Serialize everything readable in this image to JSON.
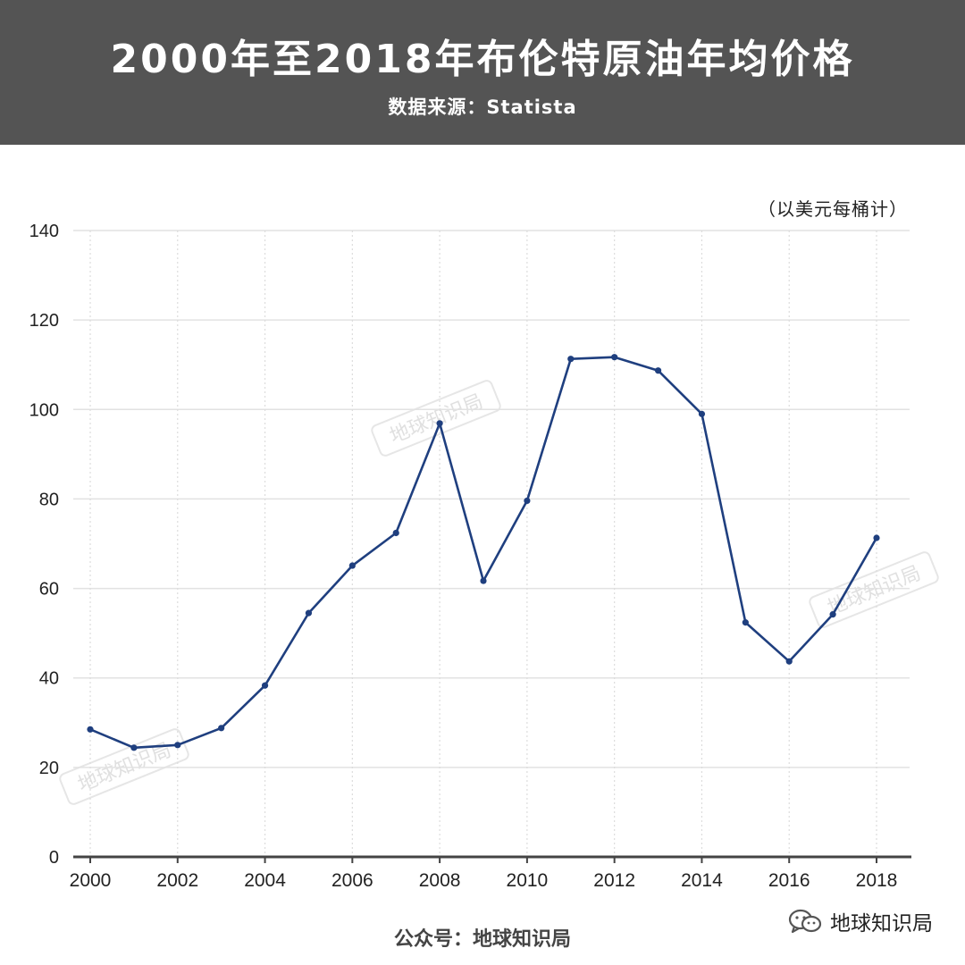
{
  "header": {
    "title": "2000年至2018年布伦特原油年均价格",
    "source": "数据来源：Statista"
  },
  "unit_label": "（以美元每桶计）",
  "footer": {
    "account": "公众号：地球知识局",
    "wechat_name": "地球知识局",
    "wechat_icon": "wechat-icon"
  },
  "watermark_text": "地球知识局",
  "colors": {
    "header_bg": "#545454",
    "line": "#1f3f7f",
    "grid": "#e2e2e2",
    "axis": "#444444"
  },
  "chart_data": {
    "type": "line",
    "title": "2000年至2018年布伦特原油年均价格",
    "subtitle": "数据来源：Statista",
    "ylabel": "（以美元每桶计）",
    "x": [
      2000,
      2001,
      2002,
      2003,
      2004,
      2005,
      2006,
      2007,
      2008,
      2009,
      2010,
      2011,
      2012,
      2013,
      2014,
      2015,
      2016,
      2017,
      2018
    ],
    "x_tick_labels": [
      "2000",
      "2002",
      "2004",
      "2006",
      "2008",
      "2010",
      "2012",
      "2014",
      "2016",
      "2018"
    ],
    "series": [
      {
        "values": [
          28.5,
          24.4,
          25.0,
          28.8,
          38.3,
          54.5,
          65.1,
          72.4,
          96.9,
          61.7,
          79.6,
          111.3,
          111.7,
          108.7,
          99.0,
          52.4,
          43.7,
          54.2,
          71.3
        ]
      }
    ],
    "ylim": [
      0,
      140
    ],
    "yticks": [
      0,
      20,
      40,
      60,
      80,
      100,
      120,
      140
    ],
    "grid": true,
    "legend": "none"
  }
}
